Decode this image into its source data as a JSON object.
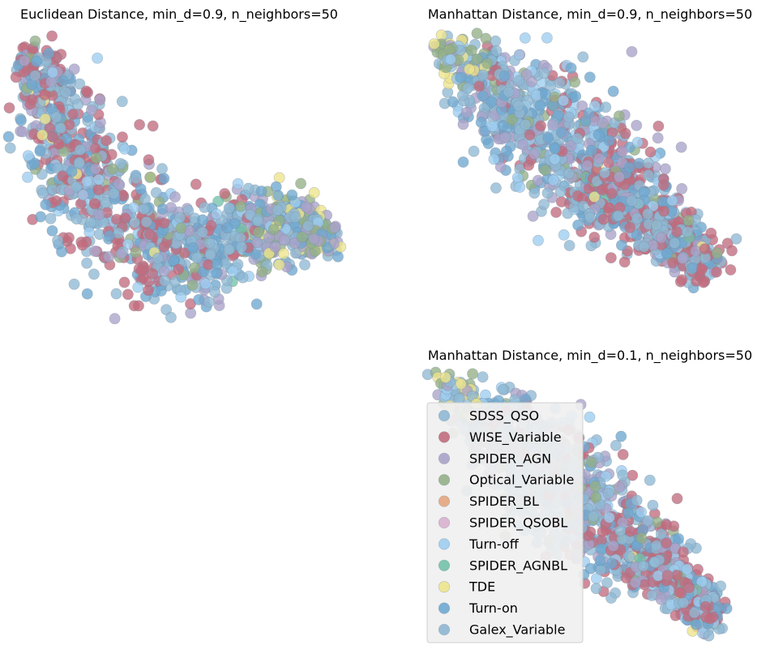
{
  "colors": {
    "SDSS_QSO": "#8fb8d4",
    "WISE_Variable": "#c16b7d",
    "SPIDER_AGN": "#a9a3c9",
    "Optical_Variable": "#93b087",
    "SPIDER_BL": "#e4a57e",
    "SPIDER_QSOBL": "#d9b0cd",
    "Turn-off": "#9dcdef",
    "SPIDER_AGNBL": "#73c1a9",
    "TDE": "#ede48c",
    "Turn-on": "#6fa8d0",
    "Galex_Variable": "#8fb6d3"
  },
  "chart_data": [
    {
      "type": "scatter",
      "title": "Euclidean Distance, min_d=0.9, n_neighbors=50",
      "xlabel": "",
      "ylabel": "",
      "axes": "off",
      "shape": "boomerang",
      "seed": 11
    },
    {
      "type": "scatter",
      "title": "Manhattan Distance, min_d=0.9, n_neighbors=50",
      "xlabel": "",
      "ylabel": "",
      "axes": "off",
      "shape": "diagonal",
      "seed": 23
    },
    {
      "type": "scatter",
      "title": "Manhattan Distance, min_d=0.1, n_neighbors=50",
      "xlabel": "",
      "ylabel": "",
      "axes": "off",
      "shape": "diagonal",
      "seed": 37
    }
  ],
  "legend": {
    "entries": [
      "SDSS_QSO",
      "WISE_Variable",
      "SPIDER_AGN",
      "Optical_Variable",
      "SPIDER_BL",
      "SPIDER_QSOBL",
      "Turn-off",
      "SPIDER_AGNBL",
      "TDE",
      "Turn-on",
      "Galex_Variable"
    ]
  }
}
